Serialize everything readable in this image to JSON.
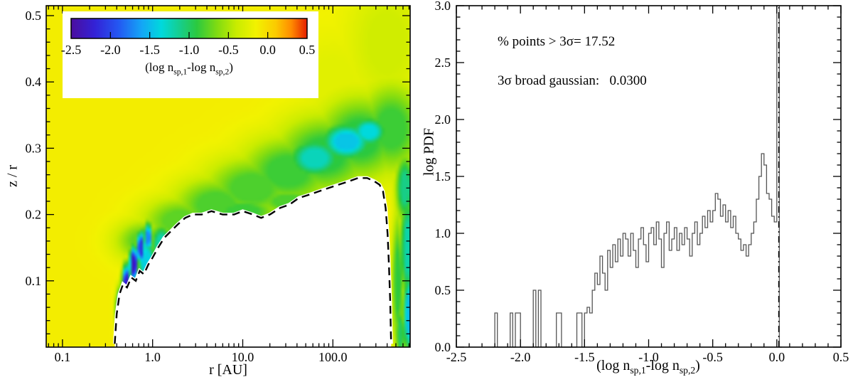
{
  "labels": {
    "diff_expr": {
      "pre": "(log n",
      "sub1": "sp,1",
      "mid": "-log n",
      "sub2": "sp,2",
      "post": ")"
    }
  },
  "chart_data": [
    {
      "type": "heatmap",
      "xlabel": "r [AU]",
      "ylabel": "z / r",
      "x_scale": "log",
      "x_range": [
        0.066,
        720
      ],
      "y_range": [
        0.0,
        0.515
      ],
      "x_major_ticks": [
        0.1,
        1.0,
        10.0,
        100.0
      ],
      "x_tick_labels": [
        "0.1",
        "1.0",
        "10.0",
        "100.0"
      ],
      "y_major_ticks": [
        0.1,
        0.2,
        0.3,
        0.4,
        0.5
      ],
      "y_tick_labels": [
        "0.1",
        "0.2",
        "0.3",
        "0.4",
        "0.5"
      ],
      "colorbar": {
        "label": "(log n_sp,1-log n_sp,2)",
        "range": [
          -2.5,
          0.5
        ],
        "tick_labels": [
          "-2.5",
          "-2.0",
          "-1.5",
          "-1.0",
          "-0.5",
          "0.0",
          "0.5"
        ],
        "stops": [
          [
            -2.5,
            "#4B0E9E"
          ],
          [
            -2.2,
            "#3322D6"
          ],
          [
            -1.9,
            "#2457F2"
          ],
          [
            -1.6,
            "#14A6F6"
          ],
          [
            -1.35,
            "#00D9DC"
          ],
          [
            -1.1,
            "#18CD86"
          ],
          [
            -0.9,
            "#2BC93F"
          ],
          [
            -0.65,
            "#7FDB12"
          ],
          [
            -0.4,
            "#C8EC00"
          ],
          [
            -0.15,
            "#F2F200"
          ],
          [
            0.1,
            "#FBCB00"
          ],
          [
            0.3,
            "#FF8C00"
          ],
          [
            0.5,
            "#E51E00"
          ]
        ]
      },
      "background_value": -0.12,
      "blobs": [
        {
          "x": -0.1,
          "y": 0.16,
          "rx": 0.3,
          "ry": 0.03,
          "v": -0.75
        },
        {
          "x": 0.3,
          "y": 0.19,
          "rx": 0.4,
          "ry": 0.035,
          "v": -0.75
        },
        {
          "x": 0.7,
          "y": 0.215,
          "rx": 0.45,
          "ry": 0.04,
          "v": -0.8
        },
        {
          "x": 1.1,
          "y": 0.24,
          "rx": 0.5,
          "ry": 0.045,
          "v": -0.8
        },
        {
          "x": 1.5,
          "y": 0.265,
          "rx": 0.5,
          "ry": 0.05,
          "v": -0.85
        },
        {
          "x": 1.9,
          "y": 0.29,
          "rx": 0.5,
          "ry": 0.055,
          "v": -0.9
        },
        {
          "x": 2.3,
          "y": 0.315,
          "rx": 0.45,
          "ry": 0.06,
          "v": -0.9
        },
        {
          "x": 2.65,
          "y": 0.33,
          "rx": 0.35,
          "ry": 0.065,
          "v": -0.85
        },
        {
          "x": 1.8,
          "y": 0.285,
          "rx": 0.3,
          "ry": 0.03,
          "v": -1.25
        },
        {
          "x": 2.15,
          "y": 0.31,
          "rx": 0.28,
          "ry": 0.028,
          "v": -1.45
        },
        {
          "x": 2.4,
          "y": 0.325,
          "rx": 0.2,
          "ry": 0.022,
          "v": -1.35
        },
        {
          "x": -0.35,
          "y": 0.055,
          "rx": 0.05,
          "ry": 0.03,
          "v": -2.0
        },
        {
          "x": -0.29,
          "y": 0.095,
          "rx": 0.045,
          "ry": 0.028,
          "v": -2.3
        },
        {
          "x": -0.21,
          "y": 0.125,
          "rx": 0.045,
          "ry": 0.026,
          "v": -2.35
        },
        {
          "x": -0.13,
          "y": 0.15,
          "rx": 0.045,
          "ry": 0.024,
          "v": -2.1
        },
        {
          "x": -0.05,
          "y": 0.165,
          "rx": 0.05,
          "ry": 0.022,
          "v": -1.7
        },
        {
          "x": -0.07,
          "y": 0.13,
          "rx": 0.1,
          "ry": 0.035,
          "v": -1.4
        },
        {
          "x": 0.1,
          "y": 0.155,
          "rx": 0.12,
          "ry": 0.03,
          "v": -1.2
        },
        {
          "x": 0.5,
          "y": 0.185,
          "rx": 0.35,
          "ry": 0.022,
          "v": -0.9
        },
        {
          "x": 1.0,
          "y": 0.205,
          "rx": 0.4,
          "ry": 0.022,
          "v": -0.85
        },
        {
          "x": 1.5,
          "y": 0.22,
          "rx": 0.35,
          "ry": 0.02,
          "v": -0.8
        },
        {
          "x": 2.8,
          "y": 0.24,
          "rx": 0.1,
          "ry": 0.05,
          "v": -1.1
        },
        {
          "x": 2.83,
          "y": 0.15,
          "rx": 0.08,
          "ry": 0.08,
          "v": -1.2
        },
        {
          "x": 2.85,
          "y": 0.05,
          "rx": 0.07,
          "ry": 0.06,
          "v": -1.5
        },
        {
          "x": 2.75,
          "y": 0.02,
          "rx": 0.05,
          "ry": 0.04,
          "v": -1.0
        },
        {
          "x": 2.72,
          "y": 0.1,
          "rx": 0.06,
          "ry": 0.1,
          "v": -0.9
        },
        {
          "x": 2.6,
          "y": 0.46,
          "rx": 0.45,
          "ry": 0.1,
          "v": -0.35
        },
        {
          "x": 2.0,
          "y": 0.4,
          "rx": 0.5,
          "ry": 0.08,
          "v": -0.25
        }
      ],
      "masked_region_boundary": [
        [
          0.38,
          0.005
        ],
        [
          0.4,
          0.05
        ],
        [
          0.43,
          0.08
        ],
        [
          0.47,
          0.095
        ],
        [
          0.52,
          0.09
        ],
        [
          0.58,
          0.105
        ],
        [
          0.65,
          0.1
        ],
        [
          0.72,
          0.115
        ],
        [
          0.8,
          0.11
        ],
        [
          0.9,
          0.125
        ],
        [
          1.0,
          0.135
        ],
        [
          1.15,
          0.15
        ],
        [
          1.35,
          0.165
        ],
        [
          1.6,
          0.175
        ],
        [
          1.9,
          0.185
        ],
        [
          2.3,
          0.195
        ],
        [
          2.8,
          0.2
        ],
        [
          3.5,
          0.2
        ],
        [
          4.5,
          0.205
        ],
        [
          6,
          0.2
        ],
        [
          8,
          0.2
        ],
        [
          10,
          0.205
        ],
        [
          13,
          0.2
        ],
        [
          16,
          0.195
        ],
        [
          20,
          0.2
        ],
        [
          26,
          0.21
        ],
        [
          33,
          0.215
        ],
        [
          42,
          0.225
        ],
        [
          55,
          0.23
        ],
        [
          70,
          0.235
        ],
        [
          90,
          0.24
        ],
        [
          115,
          0.245
        ],
        [
          150,
          0.25
        ],
        [
          190,
          0.255
        ],
        [
          240,
          0.255
        ],
        [
          290,
          0.25
        ],
        [
          330,
          0.245
        ],
        [
          360,
          0.235
        ],
        [
          385,
          0.21
        ],
        [
          405,
          0.17
        ],
        [
          420,
          0.12
        ],
        [
          432,
          0.07
        ],
        [
          440,
          0.02
        ],
        [
          443,
          0.005
        ]
      ]
    },
    {
      "type": "histogram-step",
      "xlabel": "(log n_sp,1-log n_sp,2)",
      "ylabel": "log PDF",
      "x_range": [
        -2.5,
        0.5
      ],
      "y_range": [
        0,
        3
      ],
      "x_tick_step": 0.5,
      "y_tick_step": 0.5,
      "x_tick_labels": [
        "-2.5",
        "-2.0",
        "-1.5",
        "-1.0",
        "-0.5",
        "0.0",
        "0.5"
      ],
      "y_tick_labels": [
        "0.0",
        "0.5",
        "1.0",
        "1.5",
        "2.0",
        "2.5",
        "3.0"
      ],
      "bin_width": 0.02,
      "bin_start": -2.22,
      "values": [
        0,
        0.3,
        0,
        0,
        0,
        0,
        0,
        0.3,
        0,
        0.3,
        0.3,
        0,
        0,
        0,
        0,
        0,
        0.5,
        0,
        0.5,
        0,
        0,
        0,
        0,
        0,
        0,
        0.3,
        0.3,
        0,
        0,
        0,
        0,
        0,
        0,
        0.3,
        0.3,
        0,
        0.3,
        0.35,
        0.3,
        0.5,
        0.65,
        0.55,
        0.8,
        0.65,
        0.5,
        0.85,
        0.7,
        0.9,
        0.75,
        0.95,
        0.8,
        1.0,
        0.95,
        0.8,
        1.0,
        0.85,
        0.7,
        0.95,
        1.05,
        0.9,
        0.75,
        1.0,
        1.05,
        0.9,
        1.1,
        0.95,
        0.7,
        1.0,
        1.1,
        0.85,
        0.95,
        1.05,
        0.85,
        1.0,
        0.9,
        1.05,
        0.95,
        0.8,
        1.0,
        1.1,
        0.9,
        1.0,
        1.15,
        1.05,
        1.2,
        1.1,
        1.2,
        1.35,
        1.3,
        1.15,
        1.25,
        1.1,
        1.2,
        1.05,
        1.15,
        1.0,
        0.95,
        0.85,
        0.9,
        0.8,
        0.9,
        1.0,
        1.1,
        1.3,
        1.5,
        1.7,
        1.6,
        1.35,
        1.3,
        1.15,
        1.1,
        3.0,
        0
      ],
      "gaussian_line_x": 0.015,
      "annotations": [
        "% points > 3σ= 17.52",
        "3σ broad gaussian:   0.0300"
      ],
      "stats": {
        "percent_points_gt_3sigma": 17.52,
        "sigma3_broad_gaussian": 0.03
      }
    }
  ]
}
